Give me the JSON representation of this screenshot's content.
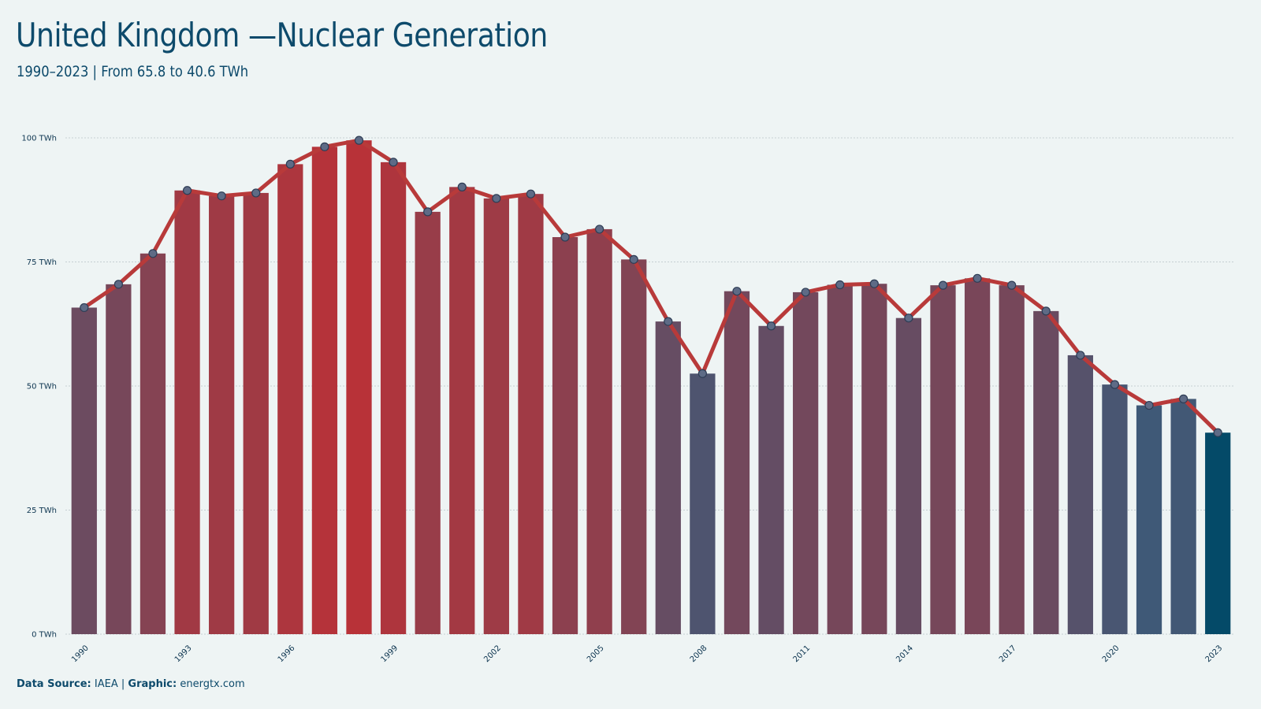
{
  "header": {
    "title": "United Kingdom —Nuclear Generation",
    "subtitle": "1990–2023 | From 65.8 to 40.6 TWh"
  },
  "footer": {
    "source_label": "Data Source:",
    "source_value": "IAEA",
    "separator": "|",
    "graphic_label": "Graphic:",
    "graphic_value": "energtx.com"
  },
  "colors": {
    "background": "#eef4f4",
    "line": "#b83a3a",
    "high_bar": "#b83238",
    "low_bar": "#3d5a78",
    "last_bar": "#044a68",
    "marker": "#5e6b86",
    "text": "#0d4a6b"
  },
  "chart_data": {
    "type": "bar",
    "categories": [
      "1990",
      "1991",
      "1992",
      "1993",
      "1994",
      "1995",
      "1996",
      "1997",
      "1998",
      "1999",
      "2000",
      "2001",
      "2002",
      "2003",
      "2004",
      "2005",
      "2006",
      "2007",
      "2008",
      "2009",
      "2010",
      "2011",
      "2012",
      "2013",
      "2014",
      "2015",
      "2016",
      "2017",
      "2018",
      "2019",
      "2020",
      "2021",
      "2022",
      "2023"
    ],
    "values": [
      65.8,
      70.5,
      76.7,
      89.4,
      88.3,
      88.9,
      94.7,
      98.2,
      99.5,
      95.1,
      85.1,
      90.1,
      87.8,
      88.7,
      80.0,
      81.6,
      75.5,
      63.0,
      52.5,
      69.1,
      62.1,
      68.9,
      70.4,
      70.6,
      63.7,
      70.3,
      71.7,
      70.3,
      65.1,
      56.2,
      50.3,
      46.1,
      47.4,
      40.6
    ],
    "overlay_line": true,
    "ylim": [
      0,
      100
    ],
    "yticks": [
      0,
      25,
      50,
      75,
      100
    ],
    "ytick_labels": [
      "0 TWh",
      "25 TWh",
      "50 TWh",
      "75 TWh",
      "100 TWh"
    ],
    "xtick_labels": [
      "1990",
      "1993",
      "1996",
      "1999",
      "2002",
      "2005",
      "2008",
      "2011",
      "2014",
      "2017",
      "2020",
      "2023"
    ],
    "grid": "horizontal"
  }
}
